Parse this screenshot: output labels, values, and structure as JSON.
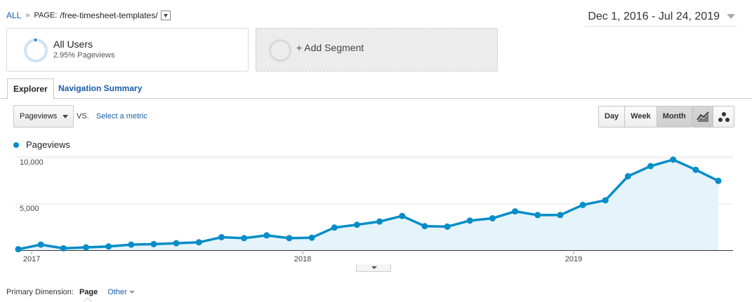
{
  "breadcrumb": {
    "all": "ALL",
    "separator": "»",
    "label": "PAGE:",
    "path": "/free-timesheet-templates/"
  },
  "date_range": "Dec 1, 2016 - Jul 24, 2019",
  "segments": {
    "primary": {
      "title": "All Users",
      "subtitle": "2.95% Pageviews"
    },
    "add": "+ Add Segment"
  },
  "tabs": [
    {
      "label": "Explorer",
      "active": true
    },
    {
      "label": "Navigation Summary",
      "active": false
    }
  ],
  "metric": {
    "selected": "Pageviews",
    "vs": "VS.",
    "select_metric": "Select a metric"
  },
  "period_buttons": [
    {
      "label": "Day",
      "active": false
    },
    {
      "label": "Week",
      "active": false
    },
    {
      "label": "Month",
      "active": true
    }
  ],
  "chart_type_buttons": [
    {
      "icon": "line-chart-icon",
      "active": true
    },
    {
      "icon": "motion-chart-icon",
      "active": false
    }
  ],
  "primary_dimension": {
    "label": "Primary Dimension:",
    "selected": "Page",
    "other": "Other"
  },
  "chart_data": {
    "type": "area",
    "series": [
      {
        "name": "Pageviews",
        "color": "#058dc7",
        "x": [
          "2016-12",
          "2017-01",
          "2017-02",
          "2017-03",
          "2017-04",
          "2017-05",
          "2017-06",
          "2017-07",
          "2017-08",
          "2017-09",
          "2017-10",
          "2017-11",
          "2017-12",
          "2018-01",
          "2018-02",
          "2018-03",
          "2018-04",
          "2018-05",
          "2018-06",
          "2018-07",
          "2018-08",
          "2018-09",
          "2018-10",
          "2018-11",
          "2018-12",
          "2019-01",
          "2019-02",
          "2019-03",
          "2019-04",
          "2019-05",
          "2019-06",
          "2019-07"
        ],
        "values": [
          100,
          600,
          200,
          300,
          400,
          600,
          650,
          750,
          850,
          1400,
          1300,
          1600,
          1300,
          1350,
          2450,
          2750,
          3100,
          3700,
          2600,
          2550,
          3200,
          3450,
          4200,
          3800,
          3800,
          4900,
          5400,
          8000,
          9100,
          9800,
          8700,
          7500
        ]
      }
    ],
    "y_ticks": [
      "10,000",
      "5,000"
    ],
    "y_tick_values": [
      10000,
      5000
    ],
    "x_ticks": [
      "2017",
      "2018",
      "2019"
    ],
    "x_tick_index": [
      1,
      13,
      25
    ],
    "ylim": [
      0,
      10000
    ],
    "grid": true,
    "legend": "top-left"
  }
}
